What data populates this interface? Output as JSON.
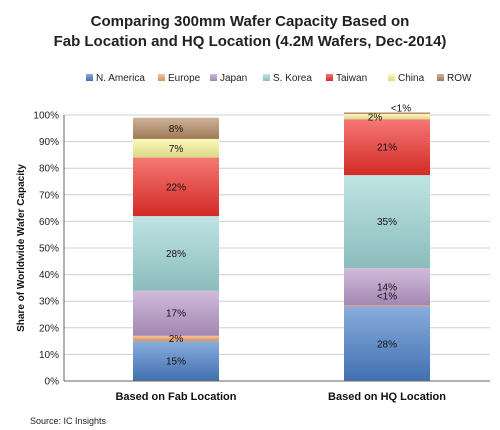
{
  "chart_data": {
    "type": "bar",
    "stacked": true,
    "title_lines": [
      "Comparing 300mm Wafer Capacity Based on",
      "Fab Location and HQ Location (4.2M Wafers, Dec-2014)"
    ],
    "ylabel": "Share of Worldwide Wafer Capacity",
    "xlabel": "",
    "ylim": [
      0,
      100
    ],
    "yticks": [
      "0%",
      "10%",
      "20%",
      "30%",
      "40%",
      "50%",
      "60%",
      "70%",
      "80%",
      "90%",
      "100%"
    ],
    "categories": [
      "Based on Fab Location",
      "Based on HQ Location"
    ],
    "grid": true,
    "legend_position": "top",
    "series": [
      {
        "name": "N. America",
        "color": "#4a7fc9",
        "values": [
          15,
          28
        ],
        "labels": [
          "15%",
          "28%"
        ]
      },
      {
        "name": "Europe",
        "color": "#f4a56a",
        "values": [
          2,
          0.4
        ],
        "labels": [
          "2%",
          "<1%"
        ]
      },
      {
        "name": "Japan",
        "color": "#b898c9",
        "values": [
          17,
          14
        ],
        "labels": [
          "17%",
          "14%"
        ]
      },
      {
        "name": "S. Korea",
        "color": "#9ed6d6",
        "values": [
          28,
          35
        ],
        "labels": [
          "28%",
          "35%"
        ]
      },
      {
        "name": "Taiwan",
        "color": "#f0302a",
        "values": [
          22,
          21
        ],
        "labels": [
          "22%",
          "21%"
        ]
      },
      {
        "name": "China",
        "color": "#fbf59a",
        "values": [
          7,
          2
        ],
        "labels": [
          "7%",
          "2%"
        ]
      },
      {
        "name": "ROW",
        "color": "#b58a62",
        "values": [
          8,
          0.6
        ],
        "labels": [
          "8%",
          "<1%"
        ]
      }
    ]
  },
  "source": "Source:  IC Insights"
}
